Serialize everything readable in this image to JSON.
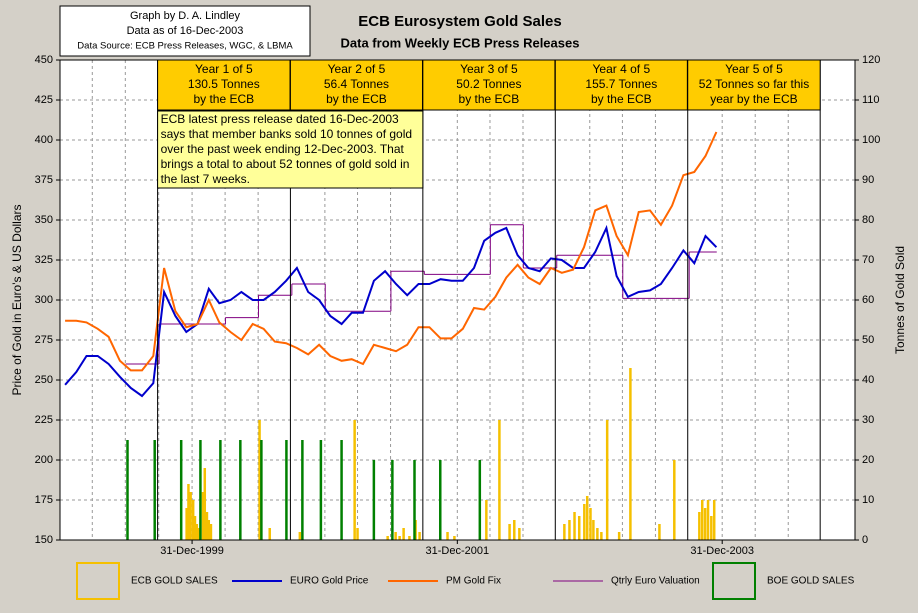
{
  "chart_data": {
    "type": "line",
    "title": "ECB Eurosystem Gold Sales",
    "subtitle": "Data from Weekly ECB Press Releases",
    "info": [
      "Graph by D. A. Lindley",
      "Data as of 16-Dec-2003",
      "Data Source:  ECB Press Releases, WGC, & LBMA"
    ],
    "ylabel": "Price of Gold in Euro's & US Dollars",
    "y2label": "Tonnes of Gold Sold",
    "ylim": [
      150,
      450
    ],
    "yticks": [
      150,
      175,
      200,
      225,
      250,
      275,
      300,
      325,
      350,
      375,
      400,
      425,
      450
    ],
    "y2lim": [
      0,
      120
    ],
    "y2ticks": [
      0,
      10,
      20,
      30,
      40,
      50,
      60,
      70,
      80,
      90,
      100,
      110,
      120
    ],
    "xlim": [
      "1999-01-01",
      "2004-12-31"
    ],
    "xticks": [
      {
        "value": "1999-12-31",
        "label": "31-Dec-1999"
      },
      {
        "value": "2001-12-31",
        "label": "31-Dec-2001"
      },
      {
        "value": "2003-12-31",
        "label": "31-Dec-2003"
      }
    ],
    "x_minor_ticks": [
      "1999-03-31",
      "1999-06-30",
      "1999-09-30",
      "1999-12-31",
      "2000-03-31",
      "2000-06-30",
      "2000-12-31",
      "2001-03-31",
      "2001-06-30",
      "2001-12-31",
      "2002-03-31",
      "2002-06-30",
      "2002-12-31",
      "2003-03-31",
      "2003-06-30",
      "2003-12-31",
      "2004-03-31",
      "2004-06-30"
    ],
    "grid": true,
    "periods": [
      {
        "label": [
          "Year 1 of 5",
          "130.5 Tonnes",
          "by the ECB"
        ],
        "start": "1999-09-27",
        "end": "2000-09-26"
      },
      {
        "label": [
          "Year 2 of 5",
          "56.4 Tonnes",
          "by the ECB"
        ],
        "start": "2000-09-27",
        "end": "2001-09-26"
      },
      {
        "label": [
          "Year 3 of 5",
          "50.2 Tonnes",
          "by the ECB"
        ],
        "start": "2001-09-27",
        "end": "2002-09-26"
      },
      {
        "label": [
          "Year 4 of 5",
          "155.7 Tonnes",
          "by the ECB"
        ],
        "start": "2002-09-27",
        "end": "2003-09-26"
      },
      {
        "label": [
          "Year 5 of 5",
          "52 Tonnes so far this",
          "year by the ECB"
        ],
        "start": "2003-09-27",
        "end": "2004-09-26"
      }
    ],
    "annotation": [
      "ECB latest press release dated 16-Dec-2003",
      "says that member banks sold 10 tonnes of gold",
      "over the past week ending 12-Dec-2003.  That",
      "brings a total to about 52 tonnes of gold sold in",
      "the last 7 weeks."
    ],
    "series": [
      {
        "name": "ECB GOLD SALES",
        "type": "bar",
        "axis": "y2",
        "color": "#f5c000",
        "x": [
          "1999-12-16",
          "1999-12-21",
          "1999-12-27",
          "2000-01-03",
          "2000-01-08",
          "2000-01-13",
          "2000-01-19",
          "2000-01-30",
          "2000-02-04",
          "2000-02-10",
          "2000-02-15",
          "2000-02-21",
          "2000-07-04",
          "2000-08-01",
          "2000-10-23",
          "2001-03-23",
          "2001-03-31",
          "2001-06-22",
          "2001-07-14",
          "2001-07-25",
          "2001-08-05",
          "2001-08-21",
          "2001-09-07",
          "2001-09-18",
          "2001-12-04",
          "2001-12-23",
          "2002-03-21",
          "2002-04-26",
          "2002-05-24",
          "2002-06-06",
          "2002-06-20",
          "2002-10-22",
          "2002-11-05",
          "2002-11-19",
          "2002-12-02",
          "2002-12-16",
          "2002-12-24",
          "2003-01-02",
          "2003-01-10",
          "2003-01-21",
          "2003-02-01",
          "2003-02-17",
          "2003-03-22",
          "2003-04-22",
          "2003-07-11",
          "2003-08-21",
          "2003-10-29",
          "2003-11-06",
          "2003-11-14",
          "2003-11-22",
          "2003-12-01",
          "2003-12-09"
        ],
        "values": [
          8,
          14,
          12,
          10,
          6,
          4,
          3,
          12,
          18,
          7,
          5,
          4,
          30,
          3,
          2,
          30,
          3,
          1,
          2,
          1,
          3,
          1,
          5,
          2,
          2,
          1,
          10,
          30,
          4,
          5,
          3,
          4,
          5,
          7,
          6,
          9,
          11,
          8,
          5,
          3,
          2,
          30,
          2,
          43,
          4,
          20,
          7,
          10,
          8,
          10,
          6,
          10
        ]
      },
      {
        "name": "EURO Gold Price",
        "type": "line",
        "color": "#0000cc",
        "x": [
          "1999-01-15",
          "1999-02-15",
          "1999-03-15",
          "1999-04-15",
          "1999-05-15",
          "1999-06-15",
          "1999-07-15",
          "1999-08-15",
          "1999-09-15",
          "1999-10-15",
          "1999-11-15",
          "1999-12-15",
          "2000-01-15",
          "2000-02-15",
          "2000-03-15",
          "2000-04-15",
          "2000-05-15",
          "2000-06-15",
          "2000-07-15",
          "2000-08-15",
          "2000-09-15",
          "2000-10-15",
          "2000-11-15",
          "2000-12-15",
          "2001-01-15",
          "2001-02-15",
          "2001-03-15",
          "2001-04-15",
          "2001-05-15",
          "2001-06-15",
          "2001-07-15",
          "2001-08-15",
          "2001-09-15",
          "2001-10-15",
          "2001-11-15",
          "2001-12-15",
          "2002-01-15",
          "2002-02-15",
          "2002-03-15",
          "2002-04-15",
          "2002-05-15",
          "2002-06-15",
          "2002-07-15",
          "2002-08-15",
          "2002-09-15",
          "2002-10-15",
          "2002-11-15",
          "2002-12-15",
          "2003-01-15",
          "2003-02-15",
          "2003-03-15",
          "2003-04-15",
          "2003-05-15",
          "2003-06-15",
          "2003-07-15",
          "2003-08-15",
          "2003-09-15",
          "2003-10-15",
          "2003-11-15",
          "2003-12-15"
        ],
        "values": [
          247,
          255,
          265,
          265,
          260,
          252,
          245,
          240,
          248,
          305,
          290,
          280,
          285,
          307,
          298,
          300,
          305,
          300,
          300,
          305,
          312,
          320,
          305,
          300,
          290,
          285,
          292,
          292,
          312,
          318,
          310,
          303,
          310,
          310,
          313,
          312,
          312,
          320,
          337,
          342,
          345,
          328,
          320,
          318,
          326,
          325,
          320,
          320,
          330,
          345,
          315,
          302,
          305,
          306,
          310,
          320,
          331,
          323,
          340,
          333
        ]
      },
      {
        "name": "PM Gold Fix",
        "type": "line",
        "color": "#ff6600",
        "x": [
          "1999-01-15",
          "1999-02-15",
          "1999-03-15",
          "1999-04-15",
          "1999-05-15",
          "1999-06-15",
          "1999-07-15",
          "1999-08-15",
          "1999-09-15",
          "1999-10-15",
          "1999-11-15",
          "1999-12-15",
          "2000-01-15",
          "2000-02-15",
          "2000-03-15",
          "2000-04-15",
          "2000-05-15",
          "2000-06-15",
          "2000-07-15",
          "2000-08-15",
          "2000-09-15",
          "2000-10-15",
          "2000-11-15",
          "2000-12-15",
          "2001-01-15",
          "2001-02-15",
          "2001-03-15",
          "2001-04-15",
          "2001-05-15",
          "2001-06-15",
          "2001-07-15",
          "2001-08-15",
          "2001-09-15",
          "2001-10-15",
          "2001-11-15",
          "2001-12-15",
          "2002-01-15",
          "2002-02-15",
          "2002-03-15",
          "2002-04-15",
          "2002-05-15",
          "2002-06-15",
          "2002-07-15",
          "2002-08-15",
          "2002-09-15",
          "2002-10-15",
          "2002-11-15",
          "2002-12-15",
          "2003-01-15",
          "2003-02-15",
          "2003-03-15",
          "2003-04-15",
          "2003-05-15",
          "2003-06-15",
          "2003-07-15",
          "2003-08-15",
          "2003-09-15",
          "2003-10-15",
          "2003-11-15",
          "2003-12-15"
        ],
        "values": [
          287,
          287,
          286,
          282,
          277,
          262,
          256,
          256,
          265,
          320,
          293,
          283,
          285,
          300,
          286,
          280,
          275,
          285,
          282,
          274,
          273,
          270,
          266,
          272,
          265,
          262,
          263,
          260,
          272,
          270,
          268,
          272,
          283,
          283,
          276,
          276,
          282,
          295,
          294,
          302,
          314,
          322,
          314,
          310,
          320,
          317,
          319,
          333,
          356,
          359,
          340,
          328,
          355,
          356,
          347,
          359,
          378,
          380,
          390,
          405
        ]
      },
      {
        "name": "Qtrly Euro Valuation",
        "type": "step",
        "color": "#800080",
        "x": [
          "1999-07-01",
          "1999-10-01",
          "2000-01-01",
          "2000-04-01",
          "2000-07-01",
          "2000-10-01",
          "2001-01-01",
          "2001-04-01",
          "2001-07-01",
          "2001-10-01",
          "2002-01-01",
          "2002-04-01",
          "2002-07-01",
          "2002-10-01",
          "2003-01-01",
          "2003-04-01",
          "2003-07-01",
          "2003-10-01",
          "2003-12-16"
        ],
        "values": [
          260,
          285,
          285,
          289,
          303,
          310,
          293,
          293,
          318,
          316,
          316,
          347,
          320,
          328,
          328,
          301,
          301,
          330,
          330
        ]
      },
      {
        "name": "BOE GOLD SALES",
        "type": "bar",
        "axis": "y2",
        "color": "#008000",
        "x": [
          "1999-07-06",
          "1999-09-19",
          "1999-12-01",
          "2000-01-23",
          "2000-03-18",
          "2000-05-12",
          "2000-07-09",
          "2000-09-16",
          "2000-10-30",
          "2000-12-20",
          "2001-02-15",
          "2001-05-15",
          "2001-07-05",
          "2001-09-04",
          "2001-11-14",
          "2002-03-03"
        ],
        "values": [
          25,
          25,
          25,
          25,
          25,
          25,
          25,
          25,
          25,
          25,
          25,
          20,
          20,
          20,
          20,
          20
        ]
      }
    ]
  }
}
